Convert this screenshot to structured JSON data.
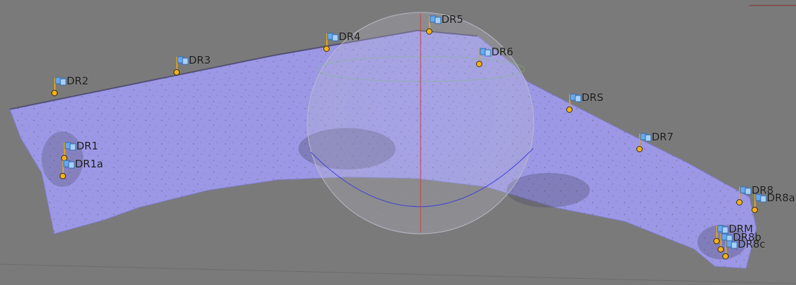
{
  "scene": {
    "background_color": "#7a7a7a",
    "mesh_color": "#9c98e6",
    "sphere_color": "#c8c8d2"
  },
  "markers": [
    {
      "id": "dr1",
      "label": "DR1",
      "icon": "flag-icon"
    },
    {
      "id": "dr1a",
      "label": "DR1a",
      "icon": "flag-icon"
    },
    {
      "id": "dr2",
      "label": "DR2",
      "icon": "flag-icon"
    },
    {
      "id": "dr3",
      "label": "DR3",
      "icon": "flag-icon"
    },
    {
      "id": "dr4",
      "label": "DR4",
      "icon": "flag-icon"
    },
    {
      "id": "dr5",
      "label": "DR5",
      "icon": "flag-icon"
    },
    {
      "id": "dr6",
      "label": "DR6",
      "icon": "flag-icon"
    },
    {
      "id": "drs",
      "label": "DRS",
      "icon": "flag-icon"
    },
    {
      "id": "dr7",
      "label": "DR7",
      "icon": "flag-icon"
    },
    {
      "id": "dr8",
      "label": "DR8",
      "icon": "flag-icon"
    },
    {
      "id": "dr8a",
      "label": "DR8a",
      "icon": "flag-icon"
    },
    {
      "id": "drm",
      "label": "DRM",
      "icon": "flag-icon"
    },
    {
      "id": "dr8b",
      "label": "DR8b",
      "icon": "flag-icon"
    },
    {
      "id": "dr8c",
      "label": "DR8c",
      "icon": "flag-icon"
    }
  ]
}
